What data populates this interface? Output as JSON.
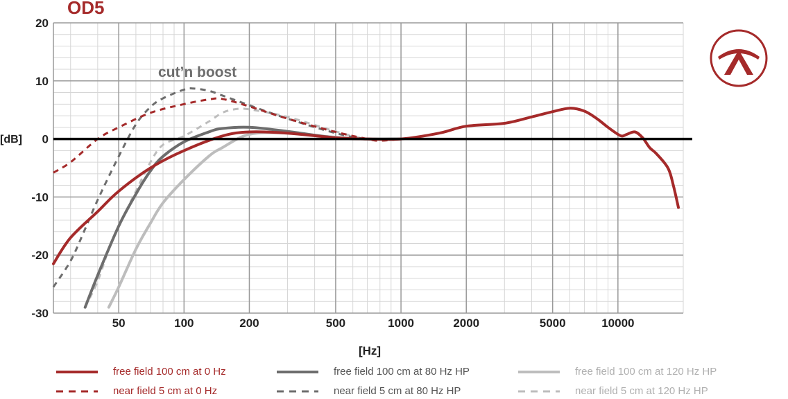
{
  "title": "OD5",
  "annotation": "cut’n boost",
  "logo": {
    "name": "brand-logo"
  },
  "colors": {
    "red": "#a52a2a",
    "dark_gray": "#6d6d6d",
    "light_gray": "#bdbdbd",
    "grid_major": "#9a9a9a",
    "grid_minor": "#d6d6d6",
    "zero_line": "#000000"
  },
  "chart_data": {
    "type": "line",
    "title": "OD5",
    "xlabel": "[Hz]",
    "ylabel": "[dB]",
    "x_scale": "log",
    "xlim": [
      25,
      20000
    ],
    "ylim": [
      -30,
      20
    ],
    "x_ticks": [
      50,
      100,
      200,
      500,
      1000,
      2000,
      5000,
      10000
    ],
    "x_tick_labels": [
      "50",
      "100",
      "200",
      "500",
      "1000",
      "2000",
      "5000",
      "10000"
    ],
    "y_ticks": [
      20,
      10,
      0,
      -10,
      -20,
      -30
    ],
    "y_tick_labels": [
      "20",
      "10",
      "0",
      "-10",
      "-20",
      "-30"
    ],
    "grid": true,
    "annotation": "cut’n boost",
    "series": [
      {
        "name": "free field 100 cm at 0 Hz",
        "color": "#a52a2a",
        "dash": "solid",
        "x": [
          25,
          30,
          40,
          50,
          70,
          100,
          150,
          200,
          300,
          500,
          700,
          1000,
          1500,
          2000,
          3000,
          4000,
          5000,
          6000,
          7000,
          8000,
          9000,
          10000,
          10500,
          11000,
          12000,
          13000,
          14000,
          15000,
          17000,
          18000,
          19000
        ],
        "y": [
          -21.5,
          -17,
          -12.5,
          -9,
          -5,
          -2,
          0.5,
          1.2,
          1,
          0.2,
          0,
          0,
          1,
          2.2,
          2.7,
          3.8,
          4.7,
          5.3,
          4.8,
          3.5,
          2,
          0.8,
          0.5,
          0.8,
          1.2,
          0.2,
          -1.5,
          -2.5,
          -5,
          -8,
          -11.8
        ]
      },
      {
        "name": "near field 5 cm at 0 Hz",
        "color": "#a52a2a",
        "dash": "dashed",
        "x": [
          25,
          30,
          40,
          50,
          70,
          100,
          130,
          150,
          200,
          300,
          500,
          700,
          800,
          1000
        ],
        "y": [
          -5.8,
          -4,
          0,
          2,
          4.5,
          6,
          6.8,
          6.9,
          5.6,
          3.5,
          1.2,
          0,
          -0.3,
          0
        ]
      },
      {
        "name": "free field 100 cm at 80 Hz HP",
        "color": "#6d6d6d",
        "dash": "solid",
        "x": [
          35,
          40,
          50,
          60,
          70,
          80,
          100,
          130,
          150,
          200,
          300,
          500,
          700,
          1000
        ],
        "y": [
          -29,
          -23.5,
          -15,
          -9.5,
          -5.5,
          -3,
          -0.5,
          1.2,
          1.8,
          2,
          1.3,
          0.2,
          0,
          0
        ]
      },
      {
        "name": "near field 5 cm at 80 Hz HP",
        "color": "#6d6d6d",
        "dash": "dashed",
        "x": [
          25,
          30,
          35,
          40,
          50,
          60,
          70,
          80,
          100,
          110,
          130,
          150,
          200,
          300,
          500,
          700,
          1000
        ],
        "y": [
          -25.5,
          -21,
          -15.5,
          -10.5,
          -3,
          2.5,
          5.5,
          7,
          8.5,
          8.7,
          8.3,
          7.5,
          5.8,
          3.5,
          1,
          0,
          0
        ]
      },
      {
        "name": "free field 100 cm at 120 Hz HP",
        "color": "#bdbdbd",
        "dash": "solid",
        "x": [
          45,
          50,
          60,
          70,
          80,
          100,
          130,
          150,
          200,
          300,
          500,
          700,
          1000
        ],
        "y": [
          -29,
          -25.5,
          -19,
          -14.5,
          -11,
          -7,
          -3,
          -1.5,
          0.8,
          1,
          0.3,
          0,
          0
        ]
      },
      {
        "name": "near field 5 cm at 120 Hz HP",
        "color": "#bdbdbd",
        "dash": "dashed",
        "x": [
          35,
          40,
          45,
          50,
          60,
          70,
          80,
          100,
          130,
          150,
          170,
          200,
          300,
          500,
          700,
          1000
        ],
        "y": [
          -29,
          -24.5,
          -19,
          -15,
          -9,
          -4,
          -1,
          0.5,
          3,
          4.5,
          5.1,
          5.1,
          3.8,
          1.3,
          0,
          0
        ]
      }
    ]
  },
  "legend": [
    {
      "label": "free field 100 cm at 0 Hz",
      "color": "#a52a2a",
      "dash": "solid",
      "text_color": "#a52a2a"
    },
    {
      "label": "near field 5 cm at 0 Hz",
      "color": "#a52a2a",
      "dash": "dashed",
      "text_color": "#a52a2a"
    },
    {
      "label": "free field 100 cm at 80 Hz HP",
      "color": "#6d6d6d",
      "dash": "solid",
      "text_color": "#555555"
    },
    {
      "label": "near field 5 cm at 80 Hz HP",
      "color": "#6d6d6d",
      "dash": "dashed",
      "text_color": "#555555"
    },
    {
      "label": "free field 100 cm at 120 Hz HP",
      "color": "#bdbdbd",
      "dash": "solid",
      "text_color": "#b0b0b0"
    },
    {
      "label": "near field 5 cm at 120 Hz HP",
      "color": "#bdbdbd",
      "dash": "dashed",
      "text_color": "#b0b0b0"
    }
  ]
}
